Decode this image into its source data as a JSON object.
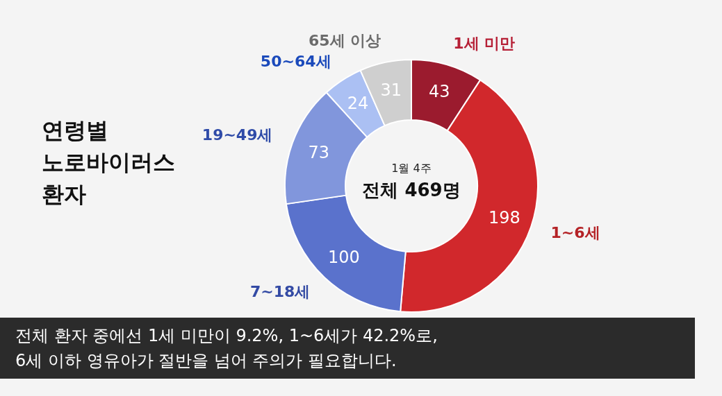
{
  "chart_data": {
    "type": "donut",
    "title": "연령별\n노로바이러스\n환자",
    "categories": [
      "1세 미만",
      "1~6세",
      "7~18세",
      "19~49세",
      "50~64세",
      "65세 이상"
    ],
    "values": [
      43,
      198,
      100,
      73,
      24,
      31
    ],
    "colors": [
      "#9b1b2e",
      "#d1282c",
      "#5a72cc",
      "#8196dc",
      "#abc0f3",
      "#cfcfcf"
    ],
    "data_labels": true,
    "legend": false,
    "annotations": [
      "1월 4주",
      "전체 469명",
      "전체 환자 중에선 1세 미만이 9.2%, 1~6세가 42.2%로,\n6세 이하 영유아가 절반을 넘어 주의가 필요합니다."
    ]
  }
}
